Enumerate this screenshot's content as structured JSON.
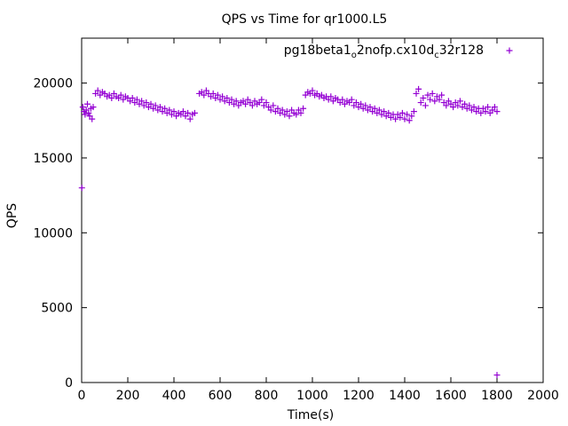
{
  "chart_data": {
    "type": "scatter",
    "title": "QPS vs Time for qr1000.L5",
    "xlabel": "Time(s)",
    "ylabel": "QPS",
    "xlim": [
      0,
      2000
    ],
    "ylim": [
      0,
      23000
    ],
    "xticks": [
      0,
      200,
      400,
      600,
      800,
      1000,
      1200,
      1400,
      1600,
      1800,
      2000
    ],
    "yticks": [
      0,
      5000,
      10000,
      15000,
      20000
    ],
    "grid": false,
    "legend_position": "top-right",
    "marker": "plus",
    "series": [
      {
        "name_parts": [
          "pg18beta1",
          "o",
          "2nofp.cx10d",
          "c",
          "32r128"
        ],
        "color": "#9400d3",
        "points": [
          [
            1,
            13000
          ],
          [
            5,
            18400
          ],
          [
            10,
            18100
          ],
          [
            15,
            17900
          ],
          [
            20,
            18200
          ],
          [
            25,
            18600
          ],
          [
            30,
            18000
          ],
          [
            35,
            17800
          ],
          [
            40,
            18300
          ],
          [
            45,
            17600
          ],
          [
            50,
            18400
          ],
          [
            60,
            19300
          ],
          [
            70,
            19500
          ],
          [
            80,
            19200
          ],
          [
            90,
            19400
          ],
          [
            100,
            19300
          ],
          [
            110,
            19100
          ],
          [
            120,
            19200
          ],
          [
            130,
            19000
          ],
          [
            140,
            19300
          ],
          [
            150,
            19100
          ],
          [
            160,
            19000
          ],
          [
            170,
            19200
          ],
          [
            180,
            18900
          ],
          [
            190,
            19100
          ],
          [
            200,
            19000
          ],
          [
            210,
            18800
          ],
          [
            220,
            19000
          ],
          [
            230,
            18700
          ],
          [
            240,
            18900
          ],
          [
            250,
            18600
          ],
          [
            260,
            18800
          ],
          [
            270,
            18500
          ],
          [
            280,
            18700
          ],
          [
            290,
            18400
          ],
          [
            300,
            18600
          ],
          [
            310,
            18300
          ],
          [
            320,
            18500
          ],
          [
            330,
            18200
          ],
          [
            340,
            18400
          ],
          [
            350,
            18100
          ],
          [
            360,
            18300
          ],
          [
            370,
            18000
          ],
          [
            380,
            18200
          ],
          [
            390,
            17900
          ],
          [
            400,
            18100
          ],
          [
            410,
            17800
          ],
          [
            420,
            18000
          ],
          [
            430,
            17900
          ],
          [
            440,
            18100
          ],
          [
            450,
            17800
          ],
          [
            460,
            18000
          ],
          [
            470,
            17600
          ],
          [
            480,
            17900
          ],
          [
            490,
            18000
          ],
          [
            510,
            19300
          ],
          [
            520,
            19400
          ],
          [
            530,
            19200
          ],
          [
            540,
            19500
          ],
          [
            550,
            19300
          ],
          [
            560,
            19100
          ],
          [
            570,
            19300
          ],
          [
            580,
            19000
          ],
          [
            590,
            19200
          ],
          [
            600,
            18900
          ],
          [
            610,
            19100
          ],
          [
            620,
            18800
          ],
          [
            630,
            19000
          ],
          [
            640,
            18700
          ],
          [
            650,
            18900
          ],
          [
            660,
            18600
          ],
          [
            670,
            18800
          ],
          [
            680,
            18500
          ],
          [
            690,
            18700
          ],
          [
            700,
            18800
          ],
          [
            710,
            18600
          ],
          [
            720,
            18900
          ],
          [
            730,
            18700
          ],
          [
            740,
            18500
          ],
          [
            750,
            18800
          ],
          [
            760,
            18600
          ],
          [
            770,
            18700
          ],
          [
            780,
            18900
          ],
          [
            790,
            18500
          ],
          [
            800,
            18700
          ],
          [
            810,
            18400
          ],
          [
            820,
            18200
          ],
          [
            830,
            18500
          ],
          [
            840,
            18100
          ],
          [
            850,
            18300
          ],
          [
            860,
            18000
          ],
          [
            870,
            18200
          ],
          [
            880,
            17900
          ],
          [
            890,
            18100
          ],
          [
            900,
            17800
          ],
          [
            910,
            18200
          ],
          [
            920,
            18000
          ],
          [
            930,
            17900
          ],
          [
            940,
            18200
          ],
          [
            950,
            18000
          ],
          [
            960,
            18300
          ],
          [
            970,
            19200
          ],
          [
            980,
            19400
          ],
          [
            990,
            19300
          ],
          [
            1000,
            19500
          ],
          [
            1010,
            19200
          ],
          [
            1020,
            19300
          ],
          [
            1030,
            19100
          ],
          [
            1040,
            19200
          ],
          [
            1050,
            19000
          ],
          [
            1060,
            19100
          ],
          [
            1070,
            18900
          ],
          [
            1080,
            19100
          ],
          [
            1090,
            18800
          ],
          [
            1100,
            19000
          ],
          [
            1110,
            18900
          ],
          [
            1120,
            18700
          ],
          [
            1130,
            18900
          ],
          [
            1140,
            18600
          ],
          [
            1150,
            18800
          ],
          [
            1160,
            18700
          ],
          [
            1170,
            18900
          ],
          [
            1180,
            18500
          ],
          [
            1190,
            18700
          ],
          [
            1200,
            18400
          ],
          [
            1210,
            18600
          ],
          [
            1220,
            18300
          ],
          [
            1230,
            18500
          ],
          [
            1240,
            18200
          ],
          [
            1250,
            18400
          ],
          [
            1260,
            18100
          ],
          [
            1270,
            18300
          ],
          [
            1280,
            18000
          ],
          [
            1290,
            18200
          ],
          [
            1300,
            17900
          ],
          [
            1310,
            18100
          ],
          [
            1320,
            17800
          ],
          [
            1330,
            18000
          ],
          [
            1340,
            17700
          ],
          [
            1350,
            17900
          ],
          [
            1360,
            17600
          ],
          [
            1370,
            17900
          ],
          [
            1380,
            17700
          ],
          [
            1390,
            18000
          ],
          [
            1400,
            17600
          ],
          [
            1410,
            17900
          ],
          [
            1420,
            17500
          ],
          [
            1430,
            17800
          ],
          [
            1440,
            18100
          ],
          [
            1450,
            19300
          ],
          [
            1460,
            19600
          ],
          [
            1470,
            18700
          ],
          [
            1480,
            19000
          ],
          [
            1490,
            18500
          ],
          [
            1500,
            19200
          ],
          [
            1510,
            18900
          ],
          [
            1520,
            19300
          ],
          [
            1530,
            18800
          ],
          [
            1540,
            19100
          ],
          [
            1550,
            18900
          ],
          [
            1560,
            19200
          ],
          [
            1570,
            18700
          ],
          [
            1580,
            18500
          ],
          [
            1590,
            18800
          ],
          [
            1600,
            18600
          ],
          [
            1610,
            18400
          ],
          [
            1620,
            18700
          ],
          [
            1630,
            18500
          ],
          [
            1640,
            18800
          ],
          [
            1650,
            18400
          ],
          [
            1660,
            18600
          ],
          [
            1670,
            18300
          ],
          [
            1680,
            18500
          ],
          [
            1690,
            18200
          ],
          [
            1700,
            18400
          ],
          [
            1710,
            18100
          ],
          [
            1720,
            18300
          ],
          [
            1730,
            18000
          ],
          [
            1740,
            18300
          ],
          [
            1750,
            18100
          ],
          [
            1760,
            18400
          ],
          [
            1770,
            18000
          ],
          [
            1780,
            18200
          ],
          [
            1790,
            18400
          ],
          [
            1800,
            18100
          ],
          [
            1800,
            500
          ]
        ]
      }
    ]
  }
}
